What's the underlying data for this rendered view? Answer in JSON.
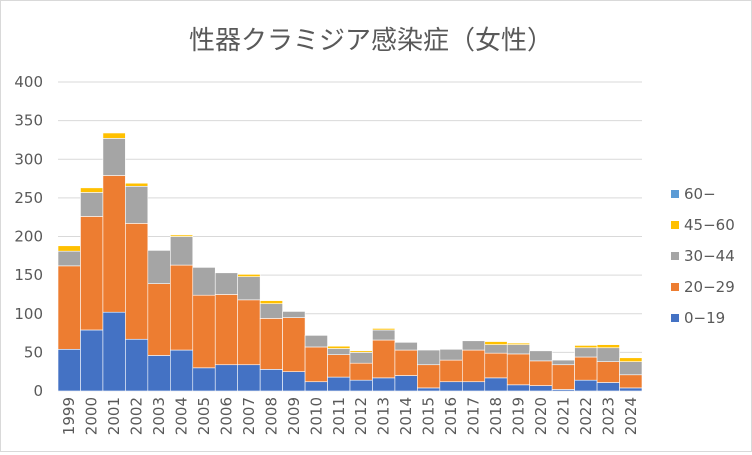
{
  "chart_data": {
    "type": "bar",
    "stacked": true,
    "title": "性器クラミジア感染症（女性）",
    "xlabel": "",
    "ylabel": "",
    "ylim": [
      0,
      400
    ],
    "yticks": [
      0,
      50,
      100,
      150,
      200,
      250,
      300,
      350,
      400
    ],
    "grid": true,
    "legend_position": "right",
    "categories": [
      "1999",
      "2000",
      "2001",
      "2002",
      "2003",
      "2004",
      "2005",
      "2006",
      "2007",
      "2008",
      "2009",
      "2010",
      "2011",
      "2012",
      "2013",
      "2014",
      "2015",
      "2016",
      "2017",
      "2018",
      "2019",
      "2020",
      "2021",
      "2022",
      "2023",
      "2024"
    ],
    "series": [
      {
        "name": "0−19",
        "color": "#4472c4",
        "values": [
          54,
          79,
          102,
          67,
          46,
          53,
          30,
          34,
          34,
          28,
          25,
          12,
          18,
          14,
          17,
          20,
          4,
          12,
          12,
          17,
          8,
          7,
          2,
          14,
          11,
          4
        ]
      },
      {
        "name": "20−29",
        "color": "#ed7d31",
        "values": [
          108,
          147,
          177,
          150,
          93,
          110,
          94,
          91,
          84,
          66,
          70,
          45,
          29,
          22,
          49,
          33,
          30,
          28,
          41,
          32,
          40,
          32,
          32,
          30,
          27,
          17
        ]
      },
      {
        "name": "30−44",
        "color": "#a5a5a5",
        "values": [
          19,
          31,
          48,
          48,
          43,
          37,
          36,
          28,
          30,
          19,
          8,
          15,
          8,
          14,
          13,
          10,
          19,
          14,
          12,
          11,
          12,
          13,
          6,
          12,
          18,
          17
        ]
      },
      {
        "name": "45−60",
        "color": "#ffc000",
        "values": [
          7,
          6,
          7,
          4,
          0,
          2,
          0,
          0,
          3,
          4,
          0,
          0,
          3,
          2,
          2,
          0,
          0,
          0,
          0,
          4,
          2,
          0,
          0,
          3,
          4,
          5
        ]
      },
      {
        "name": "60−",
        "color": "#5b9bd5",
        "values": [
          0,
          0,
          0,
          0,
          0,
          0,
          0,
          0,
          0,
          0,
          0,
          0,
          0,
          0,
          0,
          0,
          0,
          0,
          0,
          0,
          0,
          0,
          0,
          0,
          0,
          0
        ]
      }
    ],
    "legend_order": [
      "60−",
      "45−60",
      "30−44",
      "20−29",
      "0−19"
    ]
  }
}
